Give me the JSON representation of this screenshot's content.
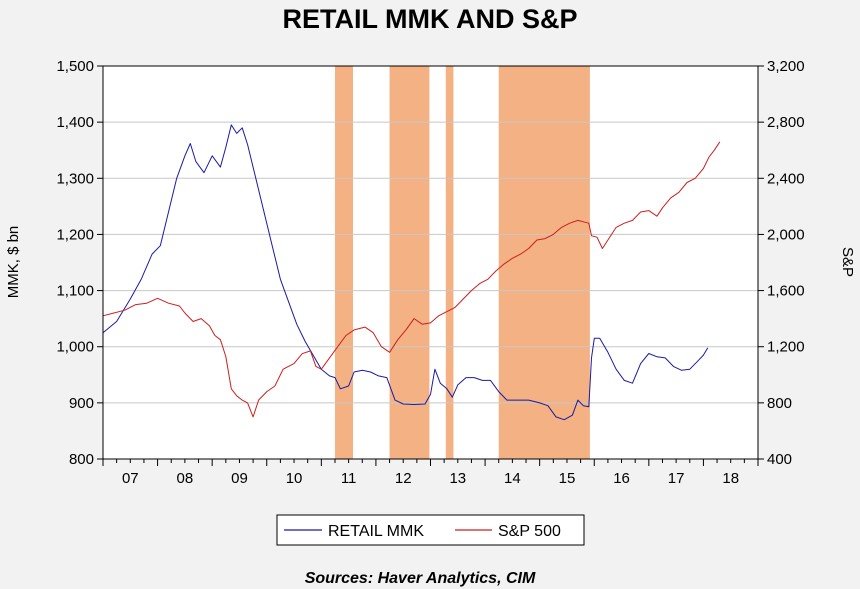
{
  "chart_data": {
    "type": "line",
    "title": "RETAIL MMK AND S&P",
    "ylabel_left": "MMK, $ bn",
    "ylabel_right": "S&P",
    "source": "Sources:  Haver Analytics, CIM",
    "ylim_left": [
      800,
      1500
    ],
    "ylim_right": [
      400,
      3200
    ],
    "xlim": [
      2006.5,
      2018.5
    ],
    "x_tick_labels": [
      "07",
      "08",
      "09",
      "10",
      "11",
      "12",
      "13",
      "14",
      "15",
      "16",
      "17",
      "18"
    ],
    "x_tick_positions": [
      2007,
      2008,
      2009,
      2010,
      2011,
      2012,
      2013,
      2014,
      2015,
      2016,
      2017,
      2018
    ],
    "y_left_ticks": [
      800,
      900,
      1000,
      1100,
      1200,
      1300,
      1400,
      1500
    ],
    "y_left_tick_labels": [
      "800",
      "900",
      "1,000",
      "1,100",
      "1,200",
      "1,300",
      "1,400",
      "1,500"
    ],
    "y_right_ticks": [
      400,
      800,
      1200,
      1600,
      2000,
      2400,
      2800,
      3200
    ],
    "y_right_tick_labels": [
      "400",
      "800",
      "1,200",
      "1,600",
      "2,000",
      "2,400",
      "2,800",
      "3,200"
    ],
    "grid": "horizontal",
    "legend_position": "bottom",
    "shaded_periods": [
      [
        2010.75,
        2011.08
      ],
      [
        2011.75,
        2012.48
      ],
      [
        2012.78,
        2012.92
      ],
      [
        2013.75,
        2015.42
      ]
    ],
    "shade_color": "#f4b183",
    "series": [
      {
        "name": "RETAIL MMK",
        "axis": "left",
        "color": "#1a1aa6",
        "points": [
          [
            2006.5,
            1025
          ],
          [
            2006.75,
            1045
          ],
          [
            2007.0,
            1085
          ],
          [
            2007.2,
            1120
          ],
          [
            2007.4,
            1165
          ],
          [
            2007.55,
            1180
          ],
          [
            2007.7,
            1240
          ],
          [
            2007.85,
            1300
          ],
          [
            2008.0,
            1340
          ],
          [
            2008.1,
            1362
          ],
          [
            2008.2,
            1330
          ],
          [
            2008.35,
            1310
          ],
          [
            2008.5,
            1340
          ],
          [
            2008.65,
            1320
          ],
          [
            2008.75,
            1355
          ],
          [
            2008.85,
            1395
          ],
          [
            2008.95,
            1380
          ],
          [
            2009.05,
            1390
          ],
          [
            2009.15,
            1360
          ],
          [
            2009.3,
            1300
          ],
          [
            2009.45,
            1240
          ],
          [
            2009.6,
            1180
          ],
          [
            2009.75,
            1120
          ],
          [
            2009.9,
            1080
          ],
          [
            2010.05,
            1040
          ],
          [
            2010.2,
            1010
          ],
          [
            2010.35,
            985
          ],
          [
            2010.5,
            960
          ],
          [
            2010.65,
            948
          ],
          [
            2010.75,
            945
          ],
          [
            2010.85,
            925
          ],
          [
            2011.0,
            930
          ],
          [
            2011.1,
            955
          ],
          [
            2011.25,
            958
          ],
          [
            2011.4,
            955
          ],
          [
            2011.55,
            948
          ],
          [
            2011.7,
            945
          ],
          [
            2011.85,
            905
          ],
          [
            2012.0,
            898
          ],
          [
            2012.2,
            897
          ],
          [
            2012.4,
            898
          ],
          [
            2012.5,
            915
          ],
          [
            2012.58,
            960
          ],
          [
            2012.68,
            935
          ],
          [
            2012.8,
            925
          ],
          [
            2012.9,
            910
          ],
          [
            2013.0,
            932
          ],
          [
            2013.15,
            945
          ],
          [
            2013.3,
            945
          ],
          [
            2013.45,
            940
          ],
          [
            2013.6,
            940
          ],
          [
            2013.75,
            920
          ],
          [
            2013.9,
            905
          ],
          [
            2014.1,
            905
          ],
          [
            2014.3,
            905
          ],
          [
            2014.5,
            900
          ],
          [
            2014.65,
            895
          ],
          [
            2014.8,
            875
          ],
          [
            2014.95,
            870
          ],
          [
            2015.1,
            878
          ],
          [
            2015.2,
            905
          ],
          [
            2015.3,
            895
          ],
          [
            2015.4,
            893
          ],
          [
            2015.45,
            980
          ],
          [
            2015.5,
            1015
          ],
          [
            2015.6,
            1015
          ],
          [
            2015.75,
            990
          ],
          [
            2015.9,
            960
          ],
          [
            2016.05,
            940
          ],
          [
            2016.2,
            935
          ],
          [
            2016.35,
            970
          ],
          [
            2016.5,
            988
          ],
          [
            2016.65,
            982
          ],
          [
            2016.8,
            980
          ],
          [
            2016.95,
            965
          ],
          [
            2017.1,
            958
          ],
          [
            2017.25,
            960
          ],
          [
            2017.4,
            975
          ],
          [
            2017.5,
            985
          ],
          [
            2017.58,
            998
          ]
        ]
      },
      {
        "name": "S&P 500",
        "axis": "right",
        "color": "#cc1f1f",
        "points": [
          [
            2006.5,
            1420
          ],
          [
            2006.7,
            1440
          ],
          [
            2006.9,
            1460
          ],
          [
            2007.1,
            1500
          ],
          [
            2007.3,
            1510
          ],
          [
            2007.5,
            1545
          ],
          [
            2007.7,
            1510
          ],
          [
            2007.9,
            1490
          ],
          [
            2008.0,
            1440
          ],
          [
            2008.15,
            1380
          ],
          [
            2008.3,
            1400
          ],
          [
            2008.45,
            1350
          ],
          [
            2008.55,
            1280
          ],
          [
            2008.65,
            1250
          ],
          [
            2008.75,
            1130
          ],
          [
            2008.85,
            900
          ],
          [
            2008.95,
            850
          ],
          [
            2009.05,
            820
          ],
          [
            2009.15,
            800
          ],
          [
            2009.25,
            700
          ],
          [
            2009.35,
            820
          ],
          [
            2009.5,
            880
          ],
          [
            2009.65,
            920
          ],
          [
            2009.8,
            1040
          ],
          [
            2010.0,
            1080
          ],
          [
            2010.15,
            1150
          ],
          [
            2010.3,
            1170
          ],
          [
            2010.4,
            1060
          ],
          [
            2010.5,
            1040
          ],
          [
            2010.65,
            1120
          ],
          [
            2010.8,
            1200
          ],
          [
            2010.95,
            1280
          ],
          [
            2011.1,
            1320
          ],
          [
            2011.3,
            1340
          ],
          [
            2011.45,
            1300
          ],
          [
            2011.6,
            1200
          ],
          [
            2011.75,
            1160
          ],
          [
            2011.9,
            1250
          ],
          [
            2012.05,
            1320
          ],
          [
            2012.2,
            1400
          ],
          [
            2012.35,
            1360
          ],
          [
            2012.5,
            1370
          ],
          [
            2012.65,
            1420
          ],
          [
            2012.8,
            1450
          ],
          [
            2012.95,
            1480
          ],
          [
            2013.1,
            1540
          ],
          [
            2013.25,
            1600
          ],
          [
            2013.4,
            1650
          ],
          [
            2013.55,
            1680
          ],
          [
            2013.7,
            1740
          ],
          [
            2013.85,
            1790
          ],
          [
            2014.0,
            1830
          ],
          [
            2014.15,
            1860
          ],
          [
            2014.3,
            1900
          ],
          [
            2014.45,
            1960
          ],
          [
            2014.6,
            1970
          ],
          [
            2014.75,
            2000
          ],
          [
            2014.9,
            2050
          ],
          [
            2015.05,
            2080
          ],
          [
            2015.2,
            2100
          ],
          [
            2015.3,
            2090
          ],
          [
            2015.4,
            2080
          ],
          [
            2015.45,
            1990
          ],
          [
            2015.55,
            1980
          ],
          [
            2015.65,
            1900
          ],
          [
            2015.75,
            1960
          ],
          [
            2015.9,
            2050
          ],
          [
            2016.05,
            2080
          ],
          [
            2016.2,
            2100
          ],
          [
            2016.35,
            2160
          ],
          [
            2016.5,
            2170
          ],
          [
            2016.65,
            2130
          ],
          [
            2016.75,
            2190
          ],
          [
            2016.9,
            2260
          ],
          [
            2017.05,
            2300
          ],
          [
            2017.2,
            2370
          ],
          [
            2017.35,
            2400
          ],
          [
            2017.5,
            2470
          ],
          [
            2017.6,
            2550
          ],
          [
            2017.7,
            2600
          ],
          [
            2017.8,
            2660
          ]
        ]
      }
    ]
  }
}
